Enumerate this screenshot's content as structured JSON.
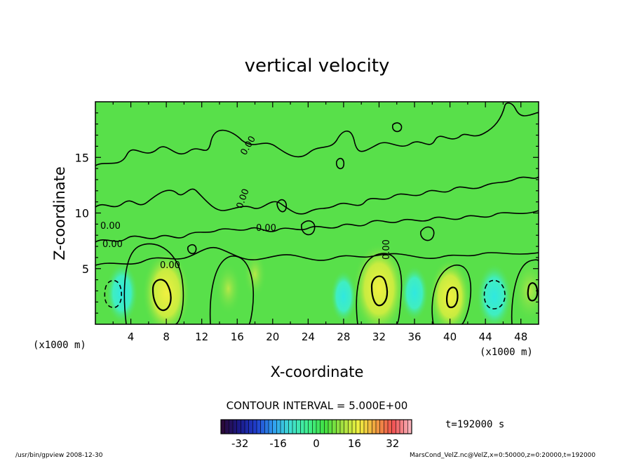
{
  "chart_data": {
    "type": "heatmap",
    "title": "vertical velocity",
    "xlabel": "X-coordinate",
    "ylabel": "Z-coordinate",
    "x_unit_left": "(x1000 m)",
    "x_unit_right": "(x1000 m)",
    "xlim": [
      0,
      50
    ],
    "ylim": [
      0,
      20
    ],
    "x_ticks": [
      4,
      8,
      12,
      16,
      20,
      24,
      28,
      32,
      36,
      40,
      44,
      48
    ],
    "y_ticks": [
      5,
      10,
      15
    ],
    "contour_interval_text": "CONTOUR INTERVAL = 5.000E+00",
    "time_text": "t=192000 s",
    "contour_labels": [
      "0.00",
      "0.00",
      "0.00",
      "0.00",
      "0.00",
      "0.00",
      "0.00"
    ],
    "colorbar": {
      "min": -40,
      "max": 40,
      "ticks": [
        -32,
        -16,
        0,
        16,
        32
      ],
      "colors": [
        "#2a0a3a",
        "#1a1a8a",
        "#2040d0",
        "#30a0f0",
        "#40e0d0",
        "#40f090",
        "#40e040",
        "#a0e040",
        "#f0f040",
        "#f0a040",
        "#f05050",
        "#f8b0b8"
      ]
    },
    "cells": [
      {
        "x": 3,
        "z": 2.8,
        "w": -12
      },
      {
        "x": 8,
        "z": 2.8,
        "w": 22
      },
      {
        "x": 15,
        "z": 3.2,
        "w": 8
      },
      {
        "x": 18,
        "z": 4.5,
        "w": 6
      },
      {
        "x": 28,
        "z": 2.5,
        "w": -8
      },
      {
        "x": 32,
        "z": 3.2,
        "w": 25
      },
      {
        "x": 36,
        "z": 2.8,
        "w": -9
      },
      {
        "x": 40,
        "z": 2.5,
        "w": 18
      },
      {
        "x": 45,
        "z": 2.5,
        "w": -14
      },
      {
        "x": 49,
        "z": 3.0,
        "w": 14
      }
    ]
  },
  "footer": {
    "left": "/usr/bin/gpview  2008-12-30",
    "right": "MarsCond_VelZ.nc@VelZ,x=0:50000,z=0:20000,t=192000"
  }
}
